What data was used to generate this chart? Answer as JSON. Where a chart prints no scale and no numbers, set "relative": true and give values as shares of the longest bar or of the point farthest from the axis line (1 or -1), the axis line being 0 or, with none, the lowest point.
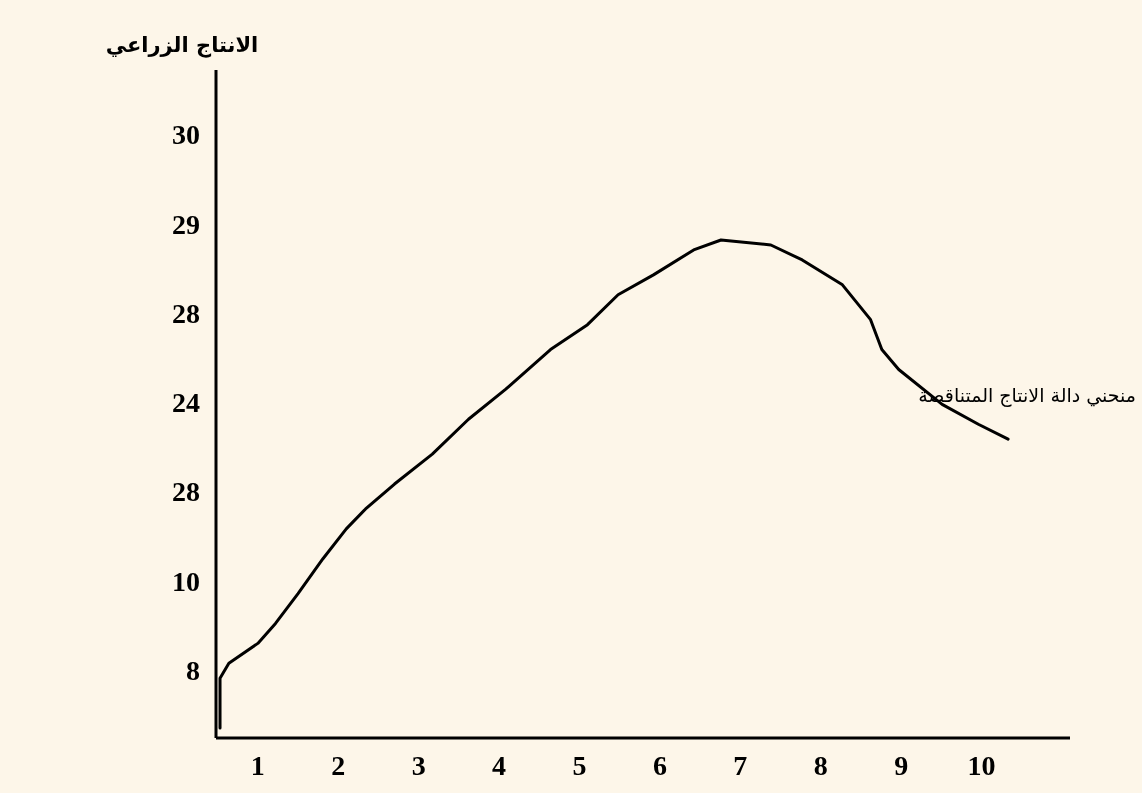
{
  "chart_data": {
    "type": "line",
    "relative": true,
    "annotations": [
      "الانتاج الزراعي",
      "8",
      "10",
      "28",
      "24",
      "28",
      "29",
      "30",
      "منحني دالة الانتاج المتناقصة"
    ],
    "x": [
      0.53,
      0.53,
      0.64,
      1,
      1.22,
      1.5,
      1.81,
      2.1,
      2.34,
      2.7,
      3.17,
      3.62,
      4.08,
      4.64,
      5.1,
      5.48,
      5.92,
      6.42,
      6.76,
      7.38,
      7.77,
      8.27,
      8.62,
      8.76,
      8.97,
      9.51,
      9.96,
      10.33
    ],
    "series": [
      {
        "color": "#000000",
        "values": [
          0.02,
          0.12,
          0.15,
          0.19,
          0.23,
          0.29,
          0.36,
          0.42,
          0.46,
          0.51,
          0.57,
          0.64,
          0.7,
          0.78,
          0.83,
          0.89,
          0.93,
          0.98,
          1,
          0.99,
          0.96,
          0.91,
          0.84,
          0.78,
          0.74,
          0.67,
          0.63,
          0.6
        ]
      }
    ],
    "marker": "none",
    "line_style": "solid",
    "xlim": [
      0.48,
      11.1
    ],
    "xticks": [
      1,
      2,
      3,
      4,
      5,
      6,
      7,
      8,
      9,
      10
    ]
  }
}
